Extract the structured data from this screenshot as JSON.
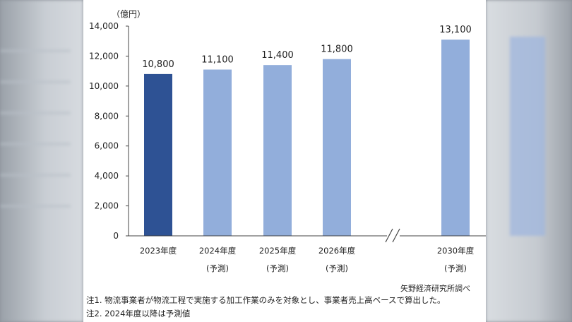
{
  "source_note": "矢野経済研究所調べ",
  "footnotes": [
    "注1.  物流事業者が物流工程で実施する加工作業のみを対象とし、事業者売上高ベースで算出した。",
    "注2.  2024年度以降は予測値"
  ],
  "chart_data": {
    "type": "bar",
    "unit_label": "（億円）",
    "categories": [
      "2023年度",
      "2024年度",
      "2025年度",
      "2026年度",
      "2030年度"
    ],
    "sublabels": [
      "",
      "(予測)",
      "(予測)",
      "(予測)",
      "(予測)"
    ],
    "values": [
      10800,
      11100,
      11400,
      11800,
      13100
    ],
    "data_labels": [
      "10,800",
      "11,100",
      "11,400",
      "11,800",
      "13,100"
    ],
    "ylim": [
      0,
      14000
    ],
    "yticks": [
      0,
      2000,
      4000,
      6000,
      8000,
      10000,
      12000,
      14000
    ],
    "ytick_labels": [
      "0",
      "2,000",
      "4,000",
      "6,000",
      "8,000",
      "10,000",
      "12,000",
      "14,000"
    ],
    "axis_break": "//",
    "grid": false,
    "colors": {
      "actual": "#2e5294",
      "forecast": "#92aedb"
    }
  }
}
